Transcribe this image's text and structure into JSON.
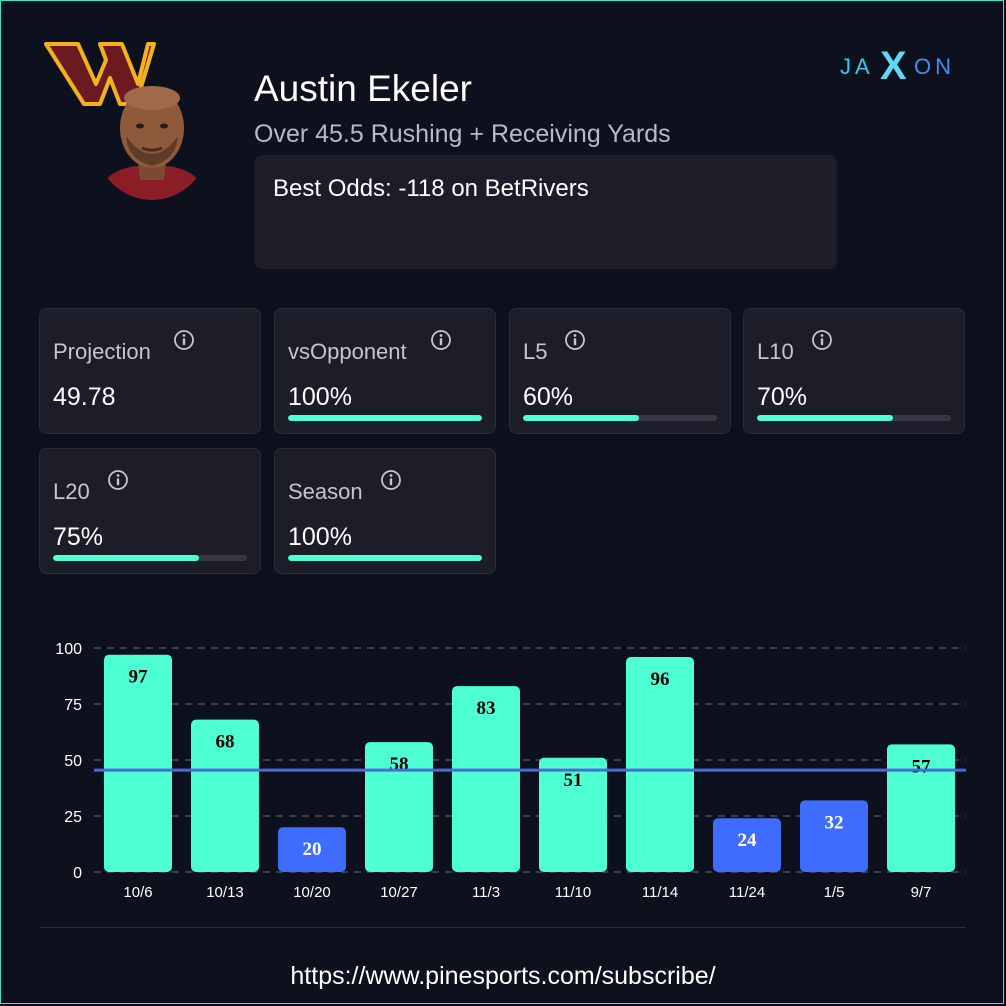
{
  "player": {
    "name": "Austin Ekeler",
    "prop_line": "Over 45.5 Rushing + Receiving Yards",
    "best_odds": "Best Odds: -118 on BetRivers",
    "team_logo_icon": "commanders-w-logo",
    "avatar_icon": "player-headshot"
  },
  "brand": {
    "logo_icon": "jaxon-logo",
    "letters_left": "JA",
    "letters_mid": "X",
    "letters_right": "ON"
  },
  "colors": {
    "background": "#0d111d",
    "card": "#1c1d28",
    "accent": "#4dffd2",
    "under": "#3d6cff",
    "line": "#4c69dd",
    "frame": "#3fe6c4"
  },
  "stats": [
    {
      "label": "Projection",
      "value": "49.78",
      "progress": null
    },
    {
      "label": "vsOpponent",
      "value": "100%",
      "progress": 1.0
    },
    {
      "label": "L5",
      "value": "60%",
      "progress": 0.6
    },
    {
      "label": "L10",
      "value": "70%",
      "progress": 0.7
    },
    {
      "label": "L20",
      "value": "75%",
      "progress": 0.75
    },
    {
      "label": "Season",
      "value": "100%",
      "progress": 1.0
    }
  ],
  "chart_data": {
    "type": "bar",
    "categories": [
      "10/6",
      "10/13",
      "10/20",
      "10/27",
      "11/3",
      "11/10",
      "11/14",
      "11/24",
      "1/5",
      "9/7"
    ],
    "values": [
      97,
      68,
      20,
      58,
      83,
      51,
      96,
      24,
      32,
      57
    ],
    "threshold": 45.5,
    "ylim": [
      0,
      100
    ],
    "yticks": [
      0,
      25,
      50,
      75,
      100
    ],
    "grid": true,
    "title": "",
    "xlabel": "",
    "ylabel": ""
  },
  "footer": {
    "url": "https://www.pinesports.com/subscribe/"
  }
}
